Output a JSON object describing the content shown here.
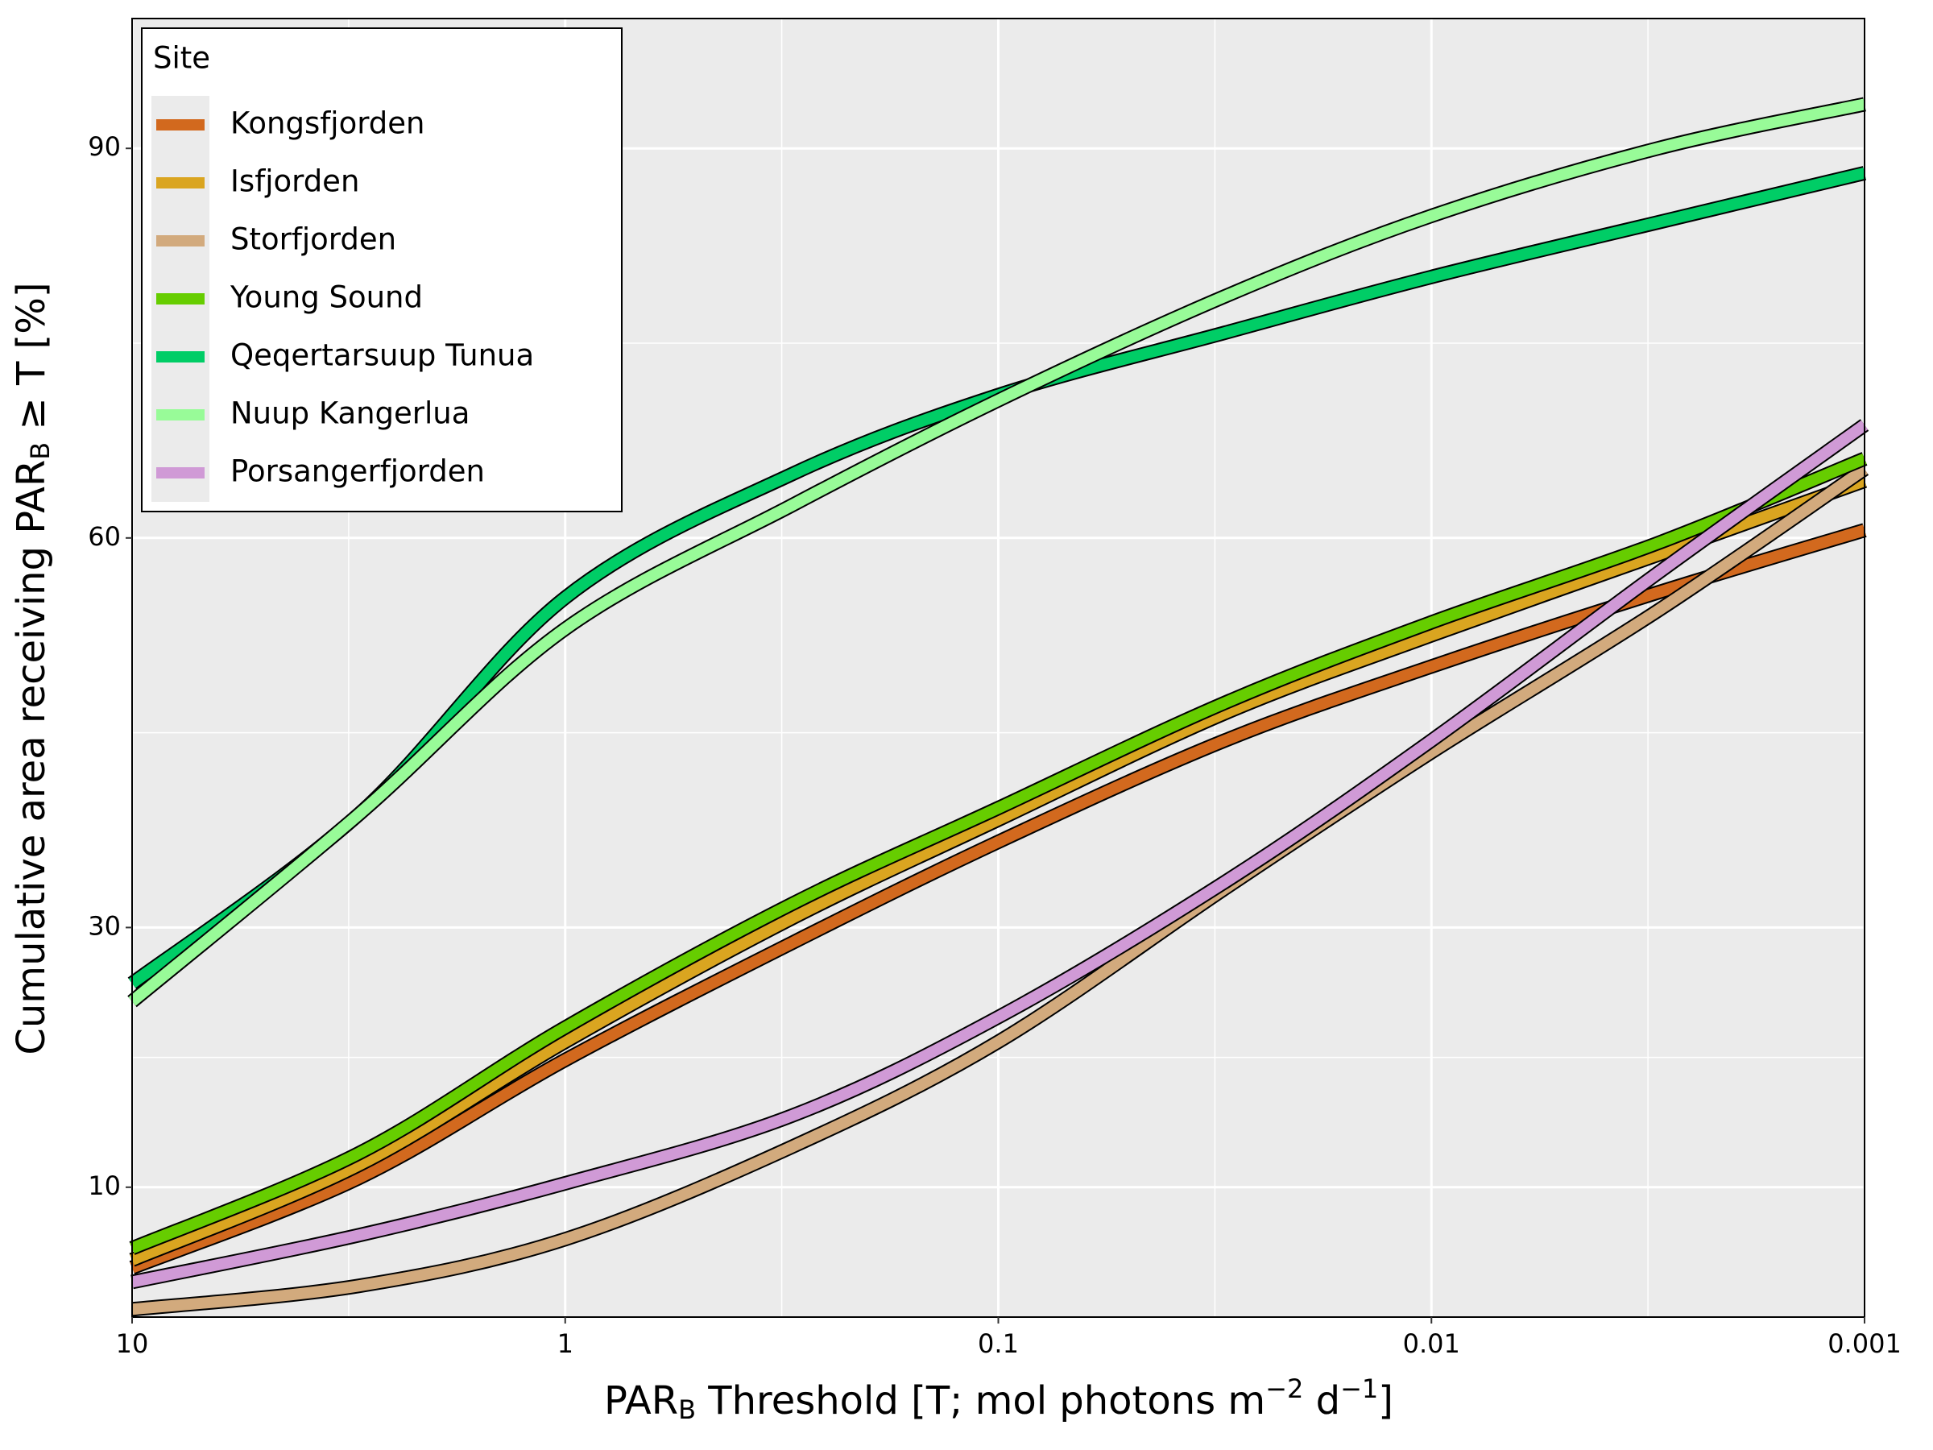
{
  "chart_data": {
    "type": "line",
    "xlabel": [
      "PAR",
      "B",
      " Threshold [T; mol photons m",
      "−2",
      " d",
      "−1",
      "]"
    ],
    "ylabel": [
      "Cumulative area receiving PAR",
      "B",
      " ≥  T [%]"
    ],
    "x": [
      10,
      3,
      1,
      0.3,
      0.1,
      0.03,
      0.01,
      0.003,
      0.001
    ],
    "xlim": [
      10,
      0.001
    ],
    "xscale": "log",
    "xticks": [
      10,
      1,
      0.1,
      0.01,
      0.001
    ],
    "ylim": [
      0,
      100
    ],
    "yticks": [
      10,
      30,
      60,
      90
    ],
    "grid": true,
    "legend_title": "Site",
    "legend": "upper left",
    "series": [
      {
        "name": "Kongsfjorden",
        "color": "#d2691e",
        "values": [
          3.8,
          10.7,
          19.8,
          28.8,
          36.6,
          44.4,
          50.1,
          55.8,
          60.6
        ]
      },
      {
        "name": "Isfjorden",
        "color": "#daa520",
        "values": [
          4.4,
          11.7,
          21.2,
          30.7,
          38.3,
          46.5,
          52.5,
          58.7,
          64.4
        ]
      },
      {
        "name": "Storfjorden",
        "color": "#d2aa7d",
        "values": [
          0.6,
          2.4,
          6.0,
          13.1,
          21.2,
          33.0,
          43.5,
          54.4,
          65.3
        ]
      },
      {
        "name": "Young Sound",
        "color": "#66cd00",
        "values": [
          5.3,
          12.6,
          22.3,
          31.8,
          39.2,
          47.3,
          53.5,
          59.6,
          66.1
        ]
      },
      {
        "name": "Qeqertarsuup Tunua",
        "color": "#00cd66",
        "values": [
          25.7,
          38.7,
          55.4,
          64.9,
          71.0,
          75.8,
          80.1,
          84.3,
          88.1
        ]
      },
      {
        "name": "Nuup Kangerlua",
        "color": "#98fb98",
        "values": [
          24.3,
          38.7,
          53.0,
          62.5,
          70.6,
          78.6,
          84.8,
          90.0,
          93.4
        ]
      },
      {
        "name": "Porsangerfjorden",
        "color": "#d09ad6",
        "values": [
          2.7,
          6.3,
          10.3,
          15.5,
          23.1,
          33.5,
          44.4,
          57.3,
          68.7
        ]
      }
    ]
  }
}
